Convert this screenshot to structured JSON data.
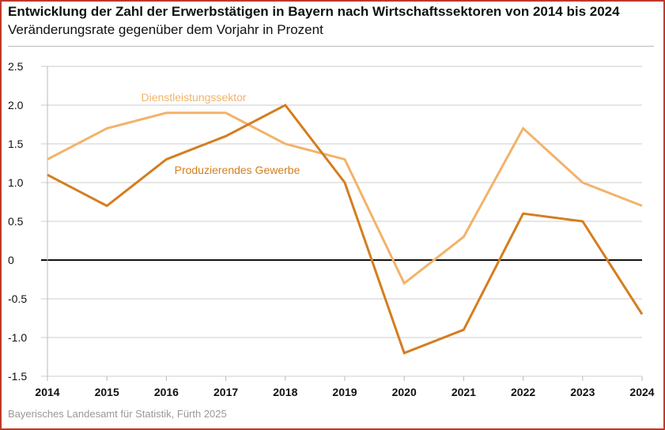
{
  "title": "Entwicklung der Zahl der Erwerbstätigen in Bayern nach Wirtschaftssektoren von 2014 bis 2024",
  "subtitle": "Veränderungsrate gegenüber dem Vorjahr in Prozent",
  "source": "Bayerisches Landesamt für Statistik, Fürth 2025",
  "chart_data": {
    "type": "line",
    "title": "Entwicklung der Zahl der Erwerbstätigen in Bayern nach Wirtschaftssektoren von 2014 bis 2024",
    "ylabel": "Veränderungsrate gegenüber dem Vorjahr in Prozent",
    "xlabel": "",
    "x": [
      "2014",
      "2015",
      "2016",
      "2017",
      "2018",
      "2019",
      "2020",
      "2021",
      "2022",
      "2023",
      "2024"
    ],
    "ylim": [
      -1.5,
      2.5
    ],
    "yticks": [
      "2.5",
      "2.0",
      "1.5",
      "1.0",
      "0.5",
      "0",
      "-0.5",
      "-1.0",
      "-1.5"
    ],
    "ytick_values": [
      2.5,
      2.0,
      1.5,
      1.0,
      0.5,
      0,
      -0.5,
      -1.0,
      -1.5
    ],
    "grid": true,
    "series": [
      {
        "name": "Dienstleistungssektor",
        "color": "#f2b36b",
        "values": [
          1.3,
          1.7,
          1.9,
          1.9,
          1.5,
          1.3,
          -0.3,
          0.3,
          1.7,
          1.0,
          0.7
        ]
      },
      {
        "name": "Produzierendes Gewerbe",
        "color": "#d47e1f",
        "values": [
          1.1,
          0.7,
          1.3,
          1.6,
          2.0,
          1.0,
          -1.2,
          -0.9,
          0.6,
          0.5,
          -0.7
        ]
      }
    ]
  }
}
